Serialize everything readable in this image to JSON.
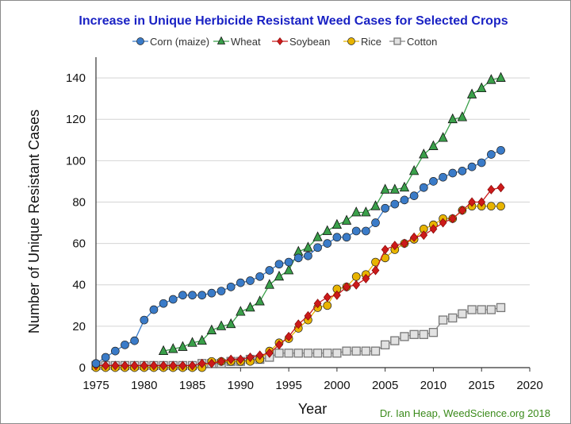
{
  "chart_data": {
    "type": "line",
    "title": "Increase in Unique Herbicide Resistant Weed Cases for Selected Crops",
    "xlabel": "Year",
    "ylabel": "Number of Unique Resistant Cases",
    "credit": "Dr. Ian Heap, WeedScience.org  2018",
    "xlim": [
      1975,
      2020
    ],
    "ylim": [
      0,
      150
    ],
    "x_ticks": [
      1975,
      1980,
      1985,
      1990,
      1995,
      2000,
      2005,
      2010,
      2015,
      2020
    ],
    "y_ticks": [
      0,
      20,
      40,
      60,
      80,
      100,
      120,
      140
    ],
    "grid": true,
    "legend_position": "top",
    "x": [
      1975,
      1976,
      1977,
      1978,
      1979,
      1980,
      1981,
      1982,
      1983,
      1984,
      1985,
      1986,
      1987,
      1988,
      1989,
      1990,
      1991,
      1992,
      1993,
      1994,
      1995,
      1996,
      1997,
      1998,
      1999,
      2000,
      2001,
      2002,
      2003,
      2004,
      2005,
      2006,
      2007,
      2008,
      2009,
      2010,
      2011,
      2012,
      2013,
      2014,
      2015,
      2016,
      2017
    ],
    "series": [
      {
        "name": "Corn (maize)",
        "color": "#3a7bc8",
        "marker": "circle",
        "values": [
          2,
          5,
          8,
          11,
          13,
          23,
          28,
          31,
          33,
          35,
          35,
          35,
          36,
          37,
          39,
          41,
          42,
          44,
          47,
          50,
          51,
          53,
          54,
          58,
          60,
          63,
          63,
          66,
          66,
          70,
          77,
          79,
          81,
          83,
          87,
          90,
          92,
          94,
          95,
          97,
          99,
          103,
          105
        ]
      },
      {
        "name": "Wheat",
        "color": "#3aa04a",
        "marker": "triangle",
        "values": [
          null,
          null,
          null,
          null,
          null,
          null,
          null,
          8,
          9,
          10,
          12,
          13,
          18,
          20,
          21,
          27,
          29,
          32,
          40,
          44,
          47,
          56,
          58,
          63,
          66,
          69,
          71,
          75,
          75,
          78,
          86,
          86,
          87,
          95,
          103,
          107,
          111,
          120,
          121,
          132,
          135,
          139,
          140
        ]
      },
      {
        "name": "Soybean",
        "color": "#cc1a1a",
        "marker": "diamond",
        "values": [
          1,
          1,
          1,
          1,
          1,
          1,
          1,
          1,
          1,
          1,
          1,
          2,
          2,
          3,
          4,
          4,
          5,
          6,
          7,
          11,
          15,
          21,
          25,
          31,
          34,
          35,
          39,
          40,
          43,
          47,
          57,
          59,
          60,
          63,
          64,
          67,
          70,
          72,
          76,
          80,
          80,
          86,
          87
        ]
      },
      {
        "name": "Rice",
        "color": "#e8b400",
        "marker": "circle",
        "values": [
          0,
          0,
          0,
          0,
          0,
          0,
          0,
          0,
          0,
          0,
          0,
          0,
          3,
          3,
          3,
          3,
          3,
          4,
          8,
          12,
          14,
          19,
          23,
          29,
          30,
          38,
          39,
          44,
          45,
          51,
          53,
          57,
          60,
          62,
          67,
          69,
          72,
          72,
          76,
          78,
          78,
          78,
          78
        ]
      },
      {
        "name": "Cotton",
        "color": "#777777",
        "marker": "square",
        "values": [
          1,
          1,
          1,
          1,
          1,
          1,
          1,
          1,
          1,
          1,
          1,
          2,
          2,
          2,
          3,
          3,
          4,
          4,
          5,
          7,
          7,
          7,
          7,
          7,
          7,
          7,
          8,
          8,
          8,
          8,
          11,
          13,
          15,
          16,
          16,
          17,
          23,
          24,
          26,
          28,
          28,
          28,
          29
        ]
      }
    ]
  }
}
